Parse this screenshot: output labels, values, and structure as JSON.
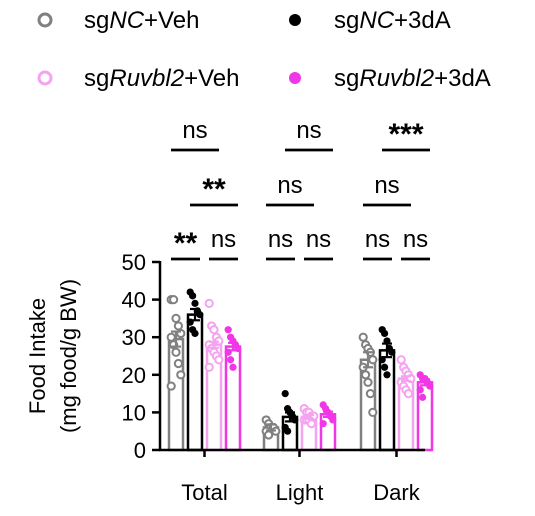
{
  "chart_data": {
    "type": "bar",
    "ylabel_line1": "Food Intake",
    "ylabel_line2": "(mg food/g BW)",
    "ylim": [
      0,
      50
    ],
    "yticks": [
      "0",
      "10",
      "20",
      "30",
      "40",
      "50"
    ],
    "categories": [
      "Total",
      "Light",
      "Dark"
    ],
    "series": [
      {
        "name": "sgNC+Veh",
        "prefix": "sg",
        "italic": "NC",
        "suffix": "+Veh",
        "color": "#808080",
        "marker": "open",
        "values": [
          29.5,
          6.0,
          24.0
        ],
        "sem": [
          2.0,
          0.8,
          2.0
        ],
        "points": [
          [
            40,
            40,
            35,
            33,
            31,
            30,
            28,
            26,
            23,
            20,
            17
          ],
          [
            8,
            7,
            6,
            6,
            5,
            5,
            4
          ],
          [
            30,
            28,
            27,
            26,
            24,
            22,
            20,
            18,
            15,
            10
          ]
        ]
      },
      {
        "name": "sgNC+3dA",
        "prefix": "sg",
        "italic": "NC",
        "suffix": "+3dA",
        "color": "#000000",
        "marker": "filled",
        "values": [
          36.0,
          8.8,
          26.5
        ],
        "sem": [
          1.5,
          1.2,
          1.8
        ],
        "points": [
          [
            42,
            41,
            39,
            37,
            36,
            34,
            32,
            31
          ],
          [
            15,
            11,
            10,
            9,
            8,
            6,
            5
          ],
          [
            32,
            31,
            29,
            27,
            26,
            24,
            22,
            20
          ]
        ]
      },
      {
        "name": "sgRuvbl2+Veh",
        "prefix": "sg",
        "italic": "Ruvbl2",
        "suffix": "+Veh",
        "color": "#f5a3f0",
        "marker": "open",
        "values": [
          28.0,
          8.8,
          19.0
        ],
        "sem": [
          0.8,
          0.5,
          0.6
        ],
        "points": [
          [
            39,
            33,
            32,
            30,
            29,
            28,
            27,
            26,
            25,
            24,
            22
          ],
          [
            11,
            10,
            10,
            9,
            9,
            8,
            8,
            8,
            7
          ],
          [
            24,
            22,
            21,
            20,
            19,
            18,
            17,
            16,
            15
          ]
        ]
      },
      {
        "name": "sgRuvbl2+3dA",
        "prefix": "sg",
        "italic": "Ruvbl2",
        "suffix": "+3dA",
        "color": "#f036e6",
        "marker": "filled",
        "values": [
          27.5,
          9.5,
          18.0
        ],
        "sem": [
          1.0,
          0.7,
          0.8
        ],
        "points": [
          [
            32,
            30,
            29,
            28,
            27,
            26,
            24,
            22
          ],
          [
            12,
            11,
            10,
            9,
            8,
            7
          ],
          [
            20,
            19,
            19,
            18,
            17,
            16,
            14
          ]
        ]
      }
    ],
    "significance": [
      {
        "label": "ns",
        "category": 0,
        "from": 0,
        "to": 2,
        "level": 5
      },
      {
        "label": "**",
        "category": 0,
        "from": 1,
        "to": 3,
        "level": 4
      },
      {
        "label": "**",
        "category": 0,
        "from": 0,
        "to": 1,
        "level": 3
      },
      {
        "label": "ns",
        "category": 0,
        "from": 2,
        "to": 3,
        "level": 3
      },
      {
        "label": "ns",
        "category": 1,
        "from": 1,
        "to": 3,
        "level": 5
      },
      {
        "label": "ns",
        "category": 1,
        "from": 0,
        "to": 2,
        "level": 4
      },
      {
        "label": "ns",
        "category": 1,
        "from": 0,
        "to": 1,
        "level": 3
      },
      {
        "label": "ns",
        "category": 1,
        "from": 2,
        "to": 3,
        "level": 3
      },
      {
        "label": "***",
        "category": 2,
        "from": 1,
        "to": 3,
        "level": 5
      },
      {
        "label": "ns",
        "category": 2,
        "from": 0,
        "to": 2,
        "level": 4
      },
      {
        "label": "ns",
        "category": 2,
        "from": 0,
        "to": 1,
        "level": 3
      },
      {
        "label": "ns",
        "category": 2,
        "from": 2,
        "to": 3,
        "level": 3
      }
    ],
    "legend_position": "top",
    "grid": false
  }
}
